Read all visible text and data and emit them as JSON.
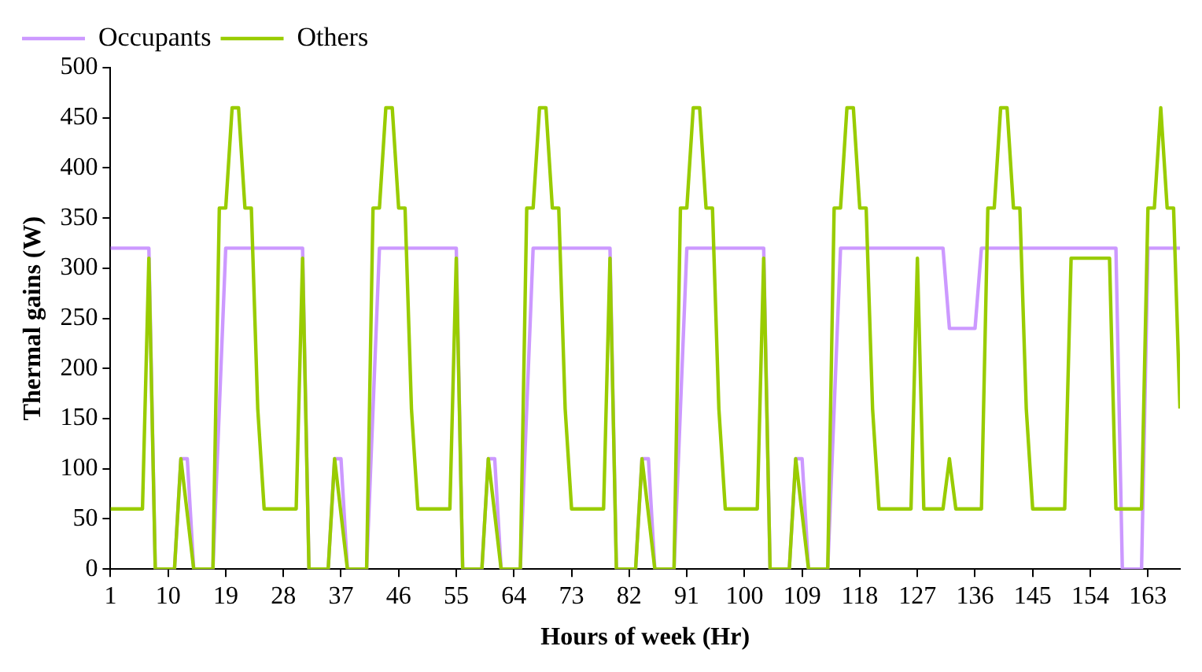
{
  "chart_data": {
    "type": "line",
    "xlabel": "Hours of week (Hr)",
    "ylabel": "Thermal gains (W)",
    "x": [
      1,
      2,
      3,
      4,
      5,
      6,
      7,
      8,
      9,
      10,
      11,
      12,
      13,
      14,
      15,
      16,
      17,
      18,
      19,
      20,
      21,
      22,
      23,
      24,
      25,
      26,
      27,
      28,
      29,
      30,
      31,
      32,
      33,
      34,
      35,
      36,
      37,
      38,
      39,
      40,
      41,
      42,
      43,
      44,
      45,
      46,
      47,
      48,
      49,
      50,
      51,
      52,
      53,
      54,
      55,
      56,
      57,
      58,
      59,
      60,
      61,
      62,
      63,
      64,
      65,
      66,
      67,
      68,
      69,
      70,
      71,
      72,
      73,
      74,
      75,
      76,
      77,
      78,
      79,
      80,
      81,
      82,
      83,
      84,
      85,
      86,
      87,
      88,
      89,
      90,
      91,
      92,
      93,
      94,
      95,
      96,
      97,
      98,
      99,
      100,
      101,
      102,
      103,
      104,
      105,
      106,
      107,
      108,
      109,
      110,
      111,
      112,
      113,
      114,
      115,
      116,
      117,
      118,
      119,
      120,
      121,
      122,
      123,
      124,
      125,
      126,
      127,
      128,
      129,
      130,
      131,
      132,
      133,
      134,
      135,
      136,
      137,
      138,
      139,
      140,
      141,
      142,
      143,
      144,
      145,
      146,
      147,
      148,
      149,
      150,
      151,
      152,
      153,
      154,
      155,
      156,
      157,
      158,
      159,
      160,
      161,
      162,
      163,
      164,
      165,
      166,
      167,
      168
    ],
    "series": [
      {
        "name": "Occupants",
        "color": "#cc99ff",
        "values": [
          320,
          320,
          320,
          320,
          320,
          320,
          320,
          0,
          0,
          0,
          0,
          110,
          110,
          0,
          0,
          0,
          0,
          160,
          320,
          320,
          320,
          320,
          320,
          320,
          320,
          320,
          320,
          320,
          320,
          320,
          320,
          0,
          0,
          0,
          0,
          110,
          110,
          0,
          0,
          0,
          0,
          160,
          320,
          320,
          320,
          320,
          320,
          320,
          320,
          320,
          320,
          320,
          320,
          320,
          320,
          0,
          0,
          0,
          0,
          110,
          110,
          0,
          0,
          0,
          0,
          160,
          320,
          320,
          320,
          320,
          320,
          320,
          320,
          320,
          320,
          320,
          320,
          320,
          320,
          0,
          0,
          0,
          0,
          110,
          110,
          0,
          0,
          0,
          0,
          160,
          320,
          320,
          320,
          320,
          320,
          320,
          320,
          320,
          320,
          320,
          320,
          320,
          320,
          0,
          0,
          0,
          0,
          110,
          110,
          0,
          0,
          0,
          0,
          160,
          320,
          320,
          320,
          320,
          320,
          320,
          320,
          320,
          320,
          320,
          320,
          320,
          320,
          320,
          320,
          320,
          320,
          240,
          240,
          240,
          240,
          240,
          320,
          320,
          320,
          320,
          320,
          320,
          320,
          320,
          320,
          320,
          320,
          320,
          320,
          320,
          320,
          320,
          320,
          320,
          320,
          320,
          320,
          320,
          0,
          0,
          0,
          0,
          320,
          320,
          320,
          320,
          320,
          320
        ]
      },
      {
        "name": "Others",
        "color": "#99cc00",
        "values": [
          60,
          60,
          60,
          60,
          60,
          60,
          310,
          0,
          0,
          0,
          0,
          110,
          55,
          0,
          0,
          0,
          0,
          360,
          360,
          460,
          460,
          360,
          360,
          160,
          60,
          60,
          60,
          60,
          60,
          60,
          310,
          0,
          0,
          0,
          0,
          110,
          55,
          0,
          0,
          0,
          0,
          360,
          360,
          460,
          460,
          360,
          360,
          160,
          60,
          60,
          60,
          60,
          60,
          60,
          310,
          0,
          0,
          0,
          0,
          110,
          55,
          0,
          0,
          0,
          0,
          360,
          360,
          460,
          460,
          360,
          360,
          160,
          60,
          60,
          60,
          60,
          60,
          60,
          310,
          0,
          0,
          0,
          0,
          110,
          55,
          0,
          0,
          0,
          0,
          360,
          360,
          460,
          460,
          360,
          360,
          160,
          60,
          60,
          60,
          60,
          60,
          60,
          310,
          0,
          0,
          0,
          0,
          110,
          55,
          0,
          0,
          0,
          0,
          360,
          360,
          460,
          460,
          360,
          360,
          160,
          60,
          60,
          60,
          60,
          60,
          60,
          310,
          60,
          60,
          60,
          60,
          110,
          60,
          60,
          60,
          60,
          60,
          360,
          360,
          460,
          460,
          360,
          360,
          160,
          60,
          60,
          60,
          60,
          60,
          60,
          310,
          310,
          310,
          310,
          310,
          310,
          310,
          60,
          60,
          60,
          60,
          60,
          360,
          360,
          460,
          360,
          360,
          160
        ]
      }
    ],
    "xlim": [
      1,
      168
    ],
    "xticks": [
      1,
      10,
      19,
      28,
      37,
      46,
      55,
      64,
      73,
      82,
      91,
      100,
      109,
      118,
      127,
      136,
      145,
      154,
      163
    ],
    "ylim": [
      0,
      500
    ],
    "yticks": [
      0,
      50,
      100,
      150,
      200,
      250,
      300,
      350,
      400,
      450,
      500
    ],
    "grid": false,
    "legend": "top left",
    "marker": "none",
    "line_style": "solid"
  }
}
